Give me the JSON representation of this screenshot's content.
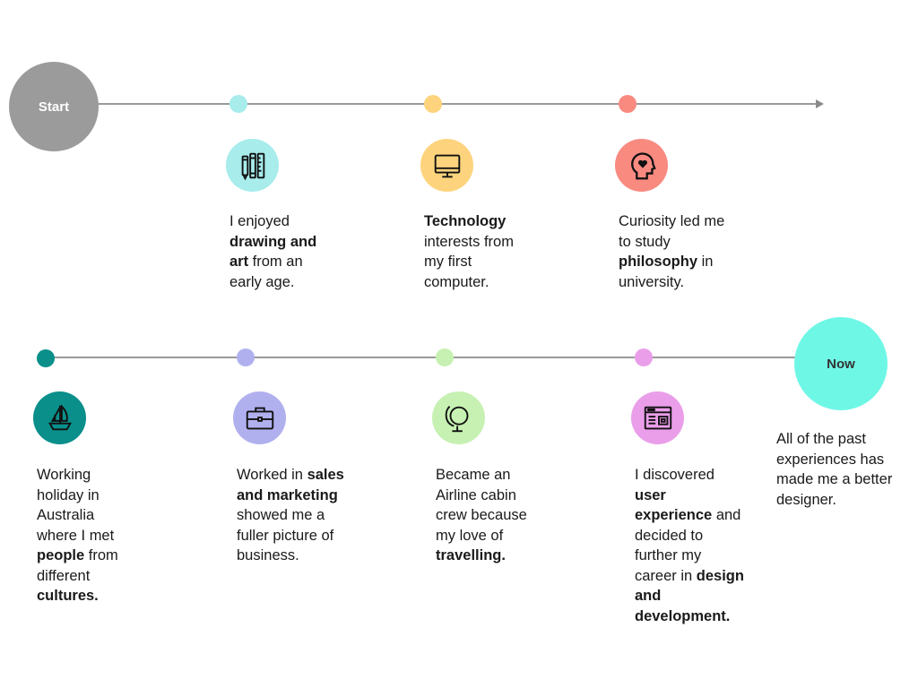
{
  "start_label": "Start",
  "now_label": "Now",
  "colors": {
    "line": "#9a9a9a",
    "start": "#9b9b9b",
    "now": "#6ff7e6",
    "drawing": "#a8ecec",
    "technology": "#fdd47d",
    "philosophy": "#f88a80",
    "holiday": "#0a8f8a",
    "sales": "#b1b0ef",
    "travel": "#c6f1b2",
    "ux": "#ea9ee9"
  },
  "steps": [
    {
      "id": "drawing",
      "icon": "pencil-ruler-icon",
      "segments": [
        {
          "text": "I enjoyed ",
          "bold": false
        },
        {
          "text": "drawing and art",
          "bold": true
        },
        {
          "text": " from an early age.",
          "bold": false
        }
      ]
    },
    {
      "id": "technology",
      "icon": "monitor-icon",
      "segments": [
        {
          "text": "Technology",
          "bold": true
        },
        {
          "text": " interests from my first computer.",
          "bold": false
        }
      ]
    },
    {
      "id": "philosophy",
      "icon": "head-heart-icon",
      "segments": [
        {
          "text": "Curiosity led me to study ",
          "bold": false
        },
        {
          "text": "philosophy",
          "bold": true
        },
        {
          "text": " in university.",
          "bold": false
        }
      ]
    },
    {
      "id": "holiday",
      "icon": "sailboat-icon",
      "segments": [
        {
          "text": "Working holiday in Australia where I met ",
          "bold": false
        },
        {
          "text": "people",
          "bold": true
        },
        {
          "text": " from different ",
          "bold": false
        },
        {
          "text": "cultures.",
          "bold": true
        }
      ]
    },
    {
      "id": "sales",
      "icon": "briefcase-icon",
      "segments": [
        {
          "text": "Worked in ",
          "bold": false
        },
        {
          "text": "sales and marketing",
          "bold": true
        },
        {
          "text": " showed me a fuller picture of business.",
          "bold": false
        }
      ]
    },
    {
      "id": "travel",
      "icon": "globe-icon",
      "segments": [
        {
          "text": "Became an Airline cabin crew because my love of ",
          "bold": false
        },
        {
          "text": "travelling.",
          "bold": true
        }
      ]
    },
    {
      "id": "ux",
      "icon": "browser-window-icon",
      "segments": [
        {
          "text": "I discovered ",
          "bold": false
        },
        {
          "text": "user experience",
          "bold": true
        },
        {
          "text": " and decided to further my career in ",
          "bold": false
        },
        {
          "text": "design and development.",
          "bold": true
        }
      ]
    }
  ],
  "now_text": "All of the past experiences has made me a better designer."
}
